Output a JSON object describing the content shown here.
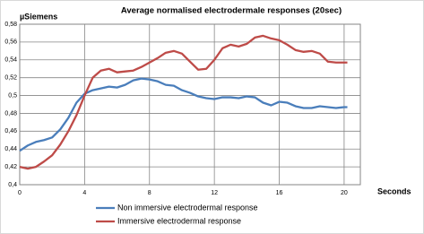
{
  "chart_data": {
    "type": "line",
    "title": "Average normalised electrodermale responses (20sec)",
    "y_label": "µSiemens",
    "x_label": "Seconds",
    "x": [
      0,
      0.5,
      1,
      1.5,
      2,
      2.5,
      3,
      3.5,
      4,
      4.5,
      5,
      5.5,
      6,
      6.5,
      7,
      7.5,
      8,
      8.5,
      9,
      9.5,
      10,
      10.5,
      11,
      11.5,
      12,
      12.5,
      13,
      13.5,
      14,
      14.5,
      15,
      15.5,
      16,
      16.5,
      17,
      17.5,
      18,
      18.5,
      19,
      19.5,
      20,
      20.2
    ],
    "series": [
      {
        "name": "Non immersive electrodermal response",
        "color": "#4a7ebb",
        "values": [
          0.438,
          0.444,
          0.448,
          0.45,
          0.453,
          0.462,
          0.475,
          0.492,
          0.502,
          0.506,
          0.508,
          0.51,
          0.509,
          0.512,
          0.517,
          0.519,
          0.518,
          0.516,
          0.512,
          0.511,
          0.506,
          0.503,
          0.499,
          0.497,
          0.496,
          0.498,
          0.498,
          0.497,
          0.499,
          0.498,
          0.492,
          0.489,
          0.493,
          0.492,
          0.488,
          0.486,
          0.486,
          0.488,
          0.487,
          0.486,
          0.487,
          0.487
        ]
      },
      {
        "name": "Immersive electrodermal response",
        "color": "#be4b48",
        "values": [
          0.42,
          0.418,
          0.42,
          0.426,
          0.433,
          0.445,
          0.46,
          0.478,
          0.5,
          0.52,
          0.528,
          0.53,
          0.526,
          0.527,
          0.528,
          0.532,
          0.537,
          0.542,
          0.548,
          0.55,
          0.547,
          0.538,
          0.529,
          0.53,
          0.54,
          0.553,
          0.557,
          0.555,
          0.558,
          0.565,
          0.567,
          0.564,
          0.562,
          0.557,
          0.551,
          0.549,
          0.55,
          0.547,
          0.538,
          0.537,
          0.537,
          0.537
        ]
      }
    ],
    "xlim": [
      0,
      21
    ],
    "xticks": [
      0,
      4,
      8,
      12,
      16,
      20
    ],
    "ylim": [
      0.4,
      0.58
    ],
    "yticks": [
      {
        "value": 0.4,
        "label": "0,4"
      },
      {
        "value": 0.42,
        "label": "0,42"
      },
      {
        "value": 0.44,
        "label": "0,44"
      },
      {
        "value": 0.46,
        "label": "0,46"
      },
      {
        "value": 0.48,
        "label": "0,48"
      },
      {
        "value": 0.5,
        "label": "0,5"
      },
      {
        "value": 0.52,
        "label": "0,52"
      },
      {
        "value": 0.54,
        "label": "0,54"
      },
      {
        "value": 0.56,
        "label": "0,56"
      },
      {
        "value": 0.58,
        "label": "0,58"
      }
    ],
    "grid": true,
    "legend": "bottom"
  }
}
